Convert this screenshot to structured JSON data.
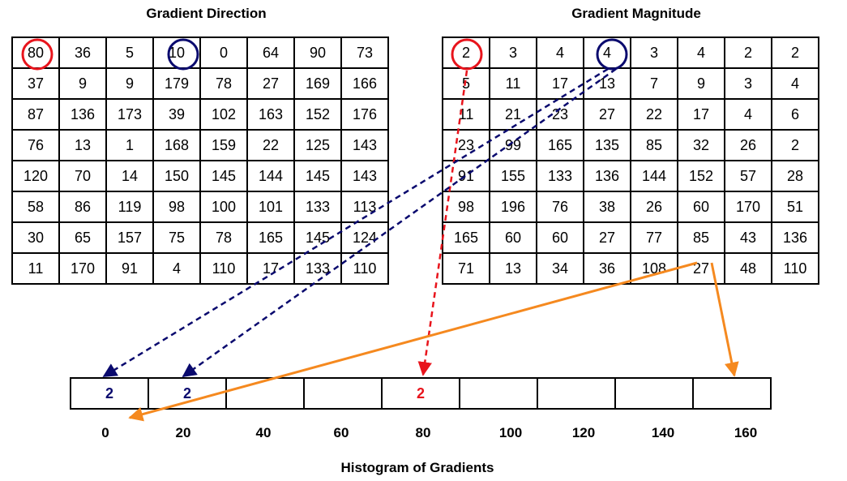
{
  "titles": {
    "direction": "Gradient Direction",
    "magnitude": "Gradient Magnitude",
    "histogram": "Histogram of Gradients"
  },
  "direction_grid": [
    [
      "80",
      "36",
      "5",
      "10",
      "0",
      "64",
      "90",
      "73"
    ],
    [
      "37",
      "9",
      "9",
      "179",
      "78",
      "27",
      "169",
      "166"
    ],
    [
      "87",
      "136",
      "173",
      "39",
      "102",
      "163",
      "152",
      "176"
    ],
    [
      "76",
      "13",
      "1",
      "168",
      "159",
      "22",
      "125",
      "143"
    ],
    [
      "120",
      "70",
      "14",
      "150",
      "145",
      "144",
      "145",
      "143"
    ],
    [
      "58",
      "86",
      "119",
      "98",
      "100",
      "101",
      "133",
      "113"
    ],
    [
      "30",
      "65",
      "157",
      "75",
      "78",
      "165",
      "145",
      "124"
    ],
    [
      "11",
      "170",
      "91",
      "4",
      "110",
      "17",
      "133",
      "110"
    ]
  ],
  "magnitude_grid": [
    [
      "2",
      "3",
      "4",
      "4",
      "3",
      "4",
      "2",
      "2"
    ],
    [
      "5",
      "11",
      "17",
      "13",
      "7",
      "9",
      "3",
      "4"
    ],
    [
      "11",
      "21",
      "23",
      "27",
      "22",
      "17",
      "4",
      "6"
    ],
    [
      "23",
      "99",
      "165",
      "135",
      "85",
      "32",
      "26",
      "2"
    ],
    [
      "91",
      "155",
      "133",
      "136",
      "144",
      "152",
      "57",
      "28"
    ],
    [
      "98",
      "196",
      "76",
      "38",
      "26",
      "60",
      "170",
      "51"
    ],
    [
      "165",
      "60",
      "60",
      "27",
      "77",
      "85",
      "43",
      "136"
    ],
    [
      "71",
      "13",
      "34",
      "36",
      "108",
      "27",
      "48",
      "110"
    ]
  ],
  "histogram": {
    "bins": [
      "0",
      "20",
      "40",
      "60",
      "80",
      "100",
      "120",
      "140",
      "160"
    ],
    "values": [
      "2",
      "2",
      "",
      "",
      "2",
      "",
      "",
      "",
      ""
    ]
  },
  "colors": {
    "red": "#e8141c",
    "navy": "#0a0a6e",
    "orange": "#f5891f"
  }
}
